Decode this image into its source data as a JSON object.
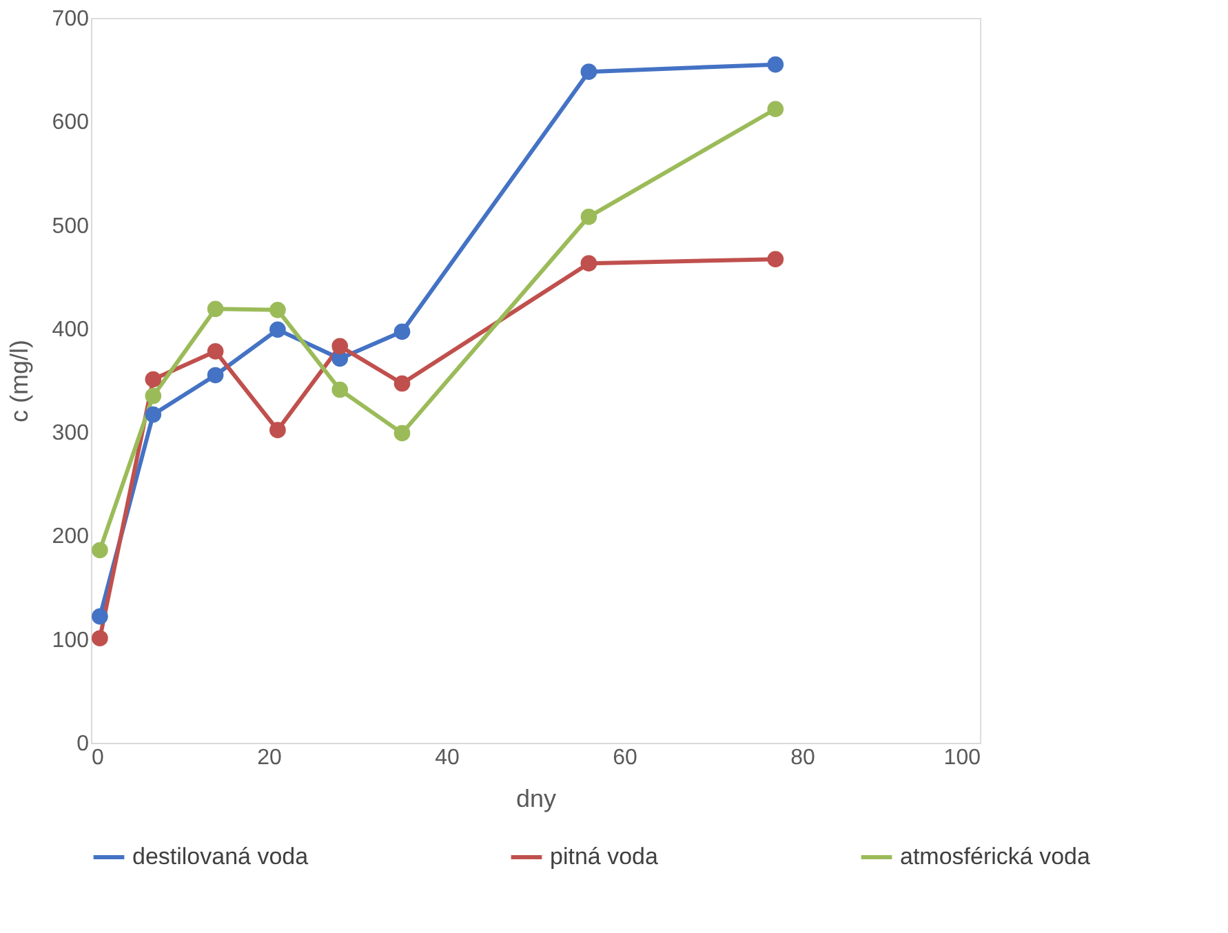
{
  "chart_data": {
    "type": "line",
    "xlabel": "dny",
    "ylabel": "c (mg/l)",
    "x": [
      1,
      7,
      14,
      21,
      28,
      35,
      56,
      77
    ],
    "series": [
      {
        "name": "destilovaná voda",
        "color": "#4472c4",
        "values": [
          122,
          317,
          355,
          399,
          371,
          397,
          648,
          655
        ]
      },
      {
        "name": "pitná voda",
        "color": "#c0504d",
        "values": [
          101,
          351,
          378,
          302,
          383,
          347,
          463,
          467
        ]
      },
      {
        "name": "atmosférická voda",
        "color": "#9bbb59",
        "values": [
          186,
          335,
          419,
          418,
          341,
          299,
          508,
          612
        ]
      }
    ],
    "xlim": [
      0,
      100
    ],
    "xticks": [
      0,
      20,
      40,
      60,
      80,
      100
    ],
    "ylim": [
      0,
      700
    ],
    "yticks": [
      0,
      100,
      200,
      300,
      400,
      500,
      600,
      700
    ],
    "grid": false,
    "legend": "bottom",
    "marker": "circle",
    "line_style": "solid"
  }
}
